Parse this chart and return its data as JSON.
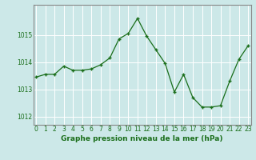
{
  "x": [
    0,
    1,
    2,
    3,
    4,
    5,
    6,
    7,
    8,
    9,
    10,
    11,
    12,
    13,
    14,
    15,
    16,
    17,
    18,
    19,
    20,
    21,
    22,
    23
  ],
  "y": [
    1013.45,
    1013.55,
    1013.55,
    1013.85,
    1013.7,
    1013.7,
    1013.75,
    1013.9,
    1014.15,
    1014.85,
    1015.05,
    1015.6,
    1014.95,
    1014.45,
    1013.95,
    1012.9,
    1013.55,
    1012.7,
    1012.35,
    1012.35,
    1012.4,
    1013.3,
    1014.1,
    1014.6
  ],
  "line_color": "#1a6e1a",
  "marker_color": "#1a6e1a",
  "bg_color": "#cce8e8",
  "grid_color": "#ffffff",
  "xlabel": "Graphe pression niveau de la mer (hPa)",
  "xlabel_color": "#1a6e1a",
  "tick_color": "#1a6e1a",
  "axis_color": "#888888",
  "ylim": [
    1011.7,
    1016.1
  ],
  "yticks": [
    1012,
    1013,
    1014,
    1015
  ],
  "xticks": [
    0,
    1,
    2,
    3,
    4,
    5,
    6,
    7,
    8,
    9,
    10,
    11,
    12,
    13,
    14,
    15,
    16,
    17,
    18,
    19,
    20,
    21,
    22,
    23
  ],
  "xlim": [
    -0.3,
    23.3
  ]
}
